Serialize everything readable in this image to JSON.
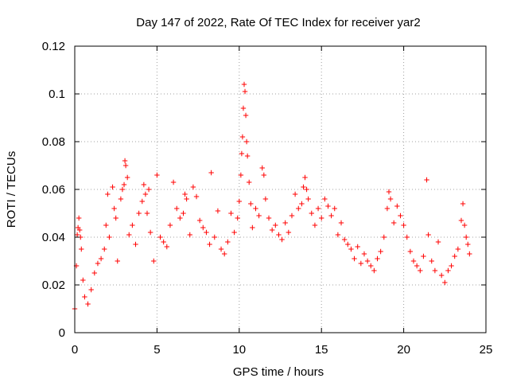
{
  "chart_data": {
    "type": "scatter",
    "title": "Day 147 of 2022, Rate Of TEC Index for receiver yar2",
    "xlabel": "GPS time / hours",
    "ylabel": "ROTI / TECUs",
    "xlim": [
      0,
      25
    ],
    "ylim": [
      0,
      0.12
    ],
    "x_ticks": [
      0,
      5,
      10,
      15,
      20,
      25
    ],
    "x_tick_labels": [
      "0",
      "5",
      "10",
      "15",
      "20",
      "25"
    ],
    "y_ticks": [
      0,
      0.02,
      0.04,
      0.06,
      0.08,
      0.1,
      0.12
    ],
    "y_tick_labels": [
      "0",
      "0.02",
      "0.04",
      "0.06",
      "0.08",
      "0.1",
      "0.12"
    ],
    "grid": true,
    "marker": "plus",
    "series": [
      {
        "color": "#ff0000",
        "points": [
          [
            0.0,
            0.01
          ],
          [
            0.1,
            0.028
          ],
          [
            0.15,
            0.041
          ],
          [
            0.2,
            0.044
          ],
          [
            0.25,
            0.048
          ],
          [
            0.3,
            0.043
          ],
          [
            0.35,
            0.04
          ],
          [
            0.4,
            0.035
          ],
          [
            0.5,
            0.022
          ],
          [
            0.6,
            0.015
          ],
          [
            0.8,
            0.012
          ],
          [
            1.0,
            0.018
          ],
          [
            1.2,
            0.025
          ],
          [
            1.4,
            0.029
          ],
          [
            1.6,
            0.031
          ],
          [
            1.8,
            0.035
          ],
          [
            1.9,
            0.045
          ],
          [
            2.0,
            0.058
          ],
          [
            2.1,
            0.04
          ],
          [
            2.3,
            0.061
          ],
          [
            2.4,
            0.052
          ],
          [
            2.5,
            0.048
          ],
          [
            2.6,
            0.03
          ],
          [
            2.8,
            0.056
          ],
          [
            2.9,
            0.06
          ],
          [
            3.0,
            0.062
          ],
          [
            3.05,
            0.072
          ],
          [
            3.1,
            0.07
          ],
          [
            3.2,
            0.065
          ],
          [
            3.3,
            0.041
          ],
          [
            3.5,
            0.045
          ],
          [
            3.7,
            0.037
          ],
          [
            3.9,
            0.05
          ],
          [
            4.1,
            0.055
          ],
          [
            4.2,
            0.062
          ],
          [
            4.3,
            0.058
          ],
          [
            4.4,
            0.05
          ],
          [
            4.5,
            0.06
          ],
          [
            4.6,
            0.042
          ],
          [
            4.8,
            0.03
          ],
          [
            5.0,
            0.066
          ],
          [
            5.2,
            0.04
          ],
          [
            5.4,
            0.038
          ],
          [
            5.6,
            0.036
          ],
          [
            5.8,
            0.045
          ],
          [
            6.0,
            0.063
          ],
          [
            6.2,
            0.052
          ],
          [
            6.4,
            0.048
          ],
          [
            6.6,
            0.05
          ],
          [
            6.7,
            0.058
          ],
          [
            6.8,
            0.056
          ],
          [
            7.0,
            0.041
          ],
          [
            7.2,
            0.061
          ],
          [
            7.4,
            0.057
          ],
          [
            7.6,
            0.047
          ],
          [
            7.8,
            0.044
          ],
          [
            8.0,
            0.042
          ],
          [
            8.2,
            0.037
          ],
          [
            8.3,
            0.067
          ],
          [
            8.5,
            0.04
          ],
          [
            8.7,
            0.051
          ],
          [
            8.9,
            0.035
          ],
          [
            9.1,
            0.033
          ],
          [
            9.3,
            0.038
          ],
          [
            9.5,
            0.05
          ],
          [
            9.7,
            0.042
          ],
          [
            9.9,
            0.048
          ],
          [
            10.0,
            0.055
          ],
          [
            10.1,
            0.066
          ],
          [
            10.15,
            0.075
          ],
          [
            10.2,
            0.082
          ],
          [
            10.25,
            0.094
          ],
          [
            10.3,
            0.104
          ],
          [
            10.35,
            0.101
          ],
          [
            10.4,
            0.091
          ],
          [
            10.45,
            0.08
          ],
          [
            10.5,
            0.074
          ],
          [
            10.6,
            0.063
          ],
          [
            10.7,
            0.054
          ],
          [
            10.8,
            0.044
          ],
          [
            11.0,
            0.052
          ],
          [
            11.2,
            0.049
          ],
          [
            11.4,
            0.069
          ],
          [
            11.5,
            0.066
          ],
          [
            11.6,
            0.056
          ],
          [
            11.8,
            0.048
          ],
          [
            12.0,
            0.043
          ],
          [
            12.2,
            0.045
          ],
          [
            12.4,
            0.041
          ],
          [
            12.6,
            0.039
          ],
          [
            12.8,
            0.046
          ],
          [
            13.0,
            0.042
          ],
          [
            13.2,
            0.049
          ],
          [
            13.4,
            0.058
          ],
          [
            13.6,
            0.052
          ],
          [
            13.8,
            0.054
          ],
          [
            13.9,
            0.061
          ],
          [
            14.0,
            0.065
          ],
          [
            14.1,
            0.06
          ],
          [
            14.2,
            0.056
          ],
          [
            14.4,
            0.05
          ],
          [
            14.6,
            0.045
          ],
          [
            14.8,
            0.052
          ],
          [
            15.0,
            0.048
          ],
          [
            15.2,
            0.056
          ],
          [
            15.4,
            0.053
          ],
          [
            15.6,
            0.049
          ],
          [
            15.8,
            0.052
          ],
          [
            16.0,
            0.041
          ],
          [
            16.2,
            0.046
          ],
          [
            16.4,
            0.039
          ],
          [
            16.6,
            0.037
          ],
          [
            16.8,
            0.035
          ],
          [
            17.0,
            0.031
          ],
          [
            17.2,
            0.036
          ],
          [
            17.4,
            0.029
          ],
          [
            17.6,
            0.033
          ],
          [
            17.8,
            0.03
          ],
          [
            18.0,
            0.028
          ],
          [
            18.2,
            0.026
          ],
          [
            18.4,
            0.031
          ],
          [
            18.6,
            0.034
          ],
          [
            18.8,
            0.04
          ],
          [
            19.0,
            0.052
          ],
          [
            19.1,
            0.059
          ],
          [
            19.2,
            0.056
          ],
          [
            19.4,
            0.046
          ],
          [
            19.6,
            0.053
          ],
          [
            19.8,
            0.049
          ],
          [
            20.0,
            0.045
          ],
          [
            20.2,
            0.04
          ],
          [
            20.4,
            0.034
          ],
          [
            20.6,
            0.03
          ],
          [
            20.8,
            0.028
          ],
          [
            21.0,
            0.026
          ],
          [
            21.2,
            0.032
          ],
          [
            21.4,
            0.064
          ],
          [
            21.5,
            0.041
          ],
          [
            21.7,
            0.03
          ],
          [
            21.9,
            0.026
          ],
          [
            22.1,
            0.038
          ],
          [
            22.3,
            0.024
          ],
          [
            22.5,
            0.021
          ],
          [
            22.7,
            0.026
          ],
          [
            22.9,
            0.028
          ],
          [
            23.1,
            0.032
          ],
          [
            23.3,
            0.035
          ],
          [
            23.5,
            0.047
          ],
          [
            23.6,
            0.054
          ],
          [
            23.7,
            0.045
          ],
          [
            23.8,
            0.04
          ],
          [
            23.9,
            0.037
          ],
          [
            24.0,
            0.033
          ]
        ]
      }
    ]
  }
}
